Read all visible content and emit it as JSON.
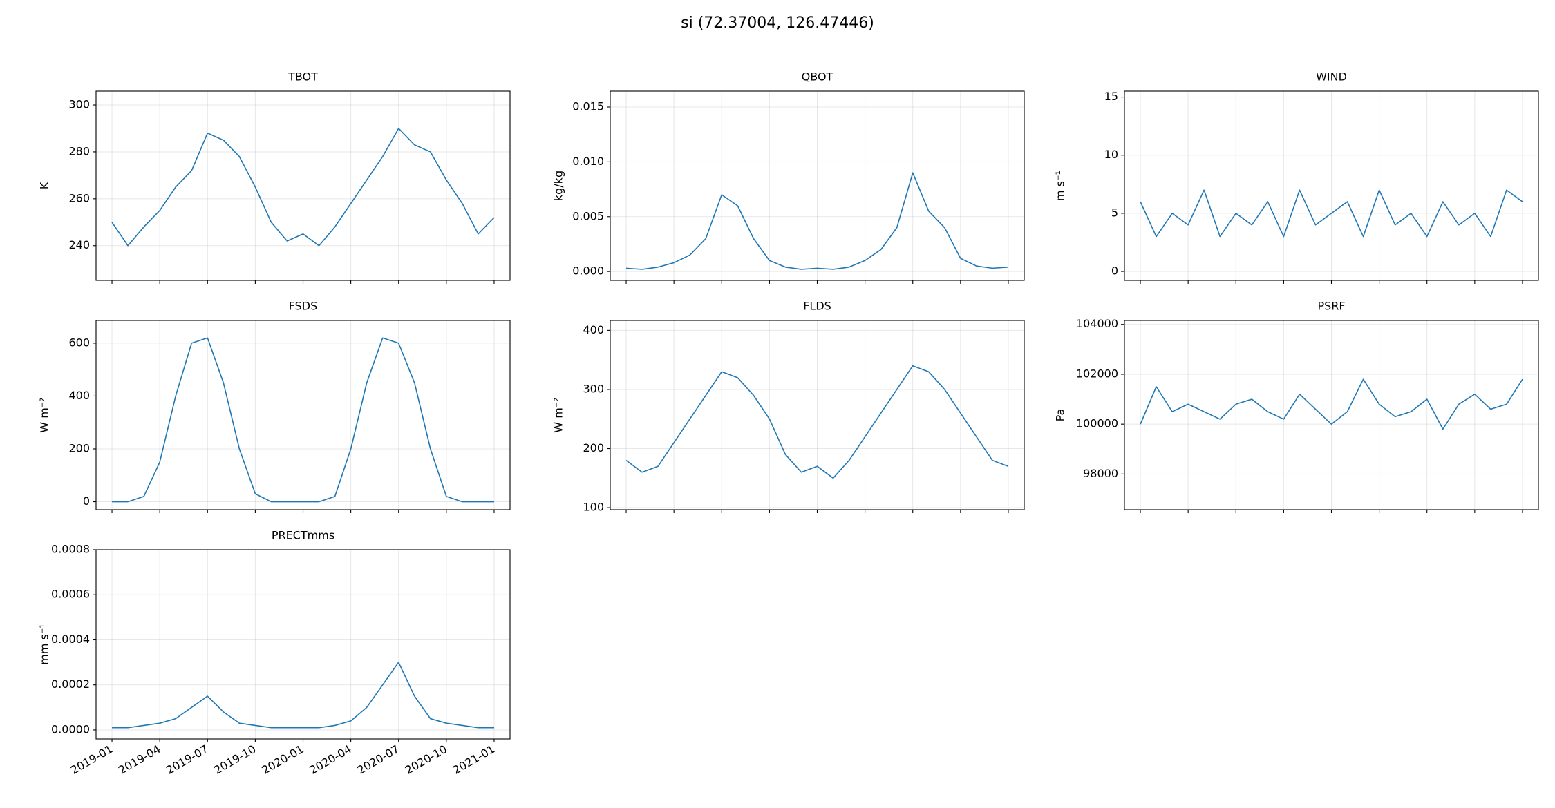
{
  "title": "si  (72.37004, 126.47446)",
  "chart_data": [
    {
      "type": "line",
      "title": "TBOT",
      "ylabel": "K",
      "color": "#1f77b4",
      "grid": true,
      "x": [
        "2019-01",
        "2019-02",
        "2019-03",
        "2019-04",
        "2019-05",
        "2019-06",
        "2019-07",
        "2019-08",
        "2019-09",
        "2019-10",
        "2019-11",
        "2019-12",
        "2020-01",
        "2020-02",
        "2020-03",
        "2020-04",
        "2020-05",
        "2020-06",
        "2020-07",
        "2020-08",
        "2020-09",
        "2020-10",
        "2020-11",
        "2020-12",
        "2021-01"
      ],
      "values": [
        250,
        240,
        248,
        255,
        265,
        272,
        288,
        285,
        278,
        265,
        250,
        242,
        245,
        240,
        248,
        258,
        268,
        278,
        290,
        283,
        280,
        268,
        258,
        245,
        252
      ],
      "xlim": [
        "2018-12",
        "2021-02"
      ],
      "ylim": [
        225.2,
        305.9
      ],
      "yticks": [
        240,
        260,
        280,
        300
      ]
    },
    {
      "type": "line",
      "title": "QBOT",
      "ylabel": "kg/kg",
      "color": "#1f77b4",
      "grid": true,
      "x": [
        "2019-01",
        "2019-02",
        "2019-03",
        "2019-04",
        "2019-05",
        "2019-06",
        "2019-07",
        "2019-08",
        "2019-09",
        "2019-10",
        "2019-11",
        "2019-12",
        "2020-01",
        "2020-02",
        "2020-03",
        "2020-04",
        "2020-05",
        "2020-06",
        "2020-07",
        "2020-08",
        "2020-09",
        "2020-10",
        "2020-11",
        "2020-12",
        "2021-01"
      ],
      "values": [
        0.0003,
        0.0002,
        0.0004,
        0.0008,
        0.0015,
        0.003,
        0.007,
        0.006,
        0.003,
        0.001,
        0.0004,
        0.0002,
        0.0003,
        0.0002,
        0.0004,
        0.001,
        0.002,
        0.004,
        0.009,
        0.0055,
        0.004,
        0.0012,
        0.0005,
        0.0003,
        0.0004
      ],
      "xlim": [
        "2018-12",
        "2021-02"
      ],
      "ylim": [
        -0.00081,
        0.01645
      ],
      "yticks": [
        {
          "value": 0,
          "label": "0.000"
        },
        {
          "value": 0.005,
          "label": "0.005"
        },
        {
          "value": 0.01,
          "label": "0.010"
        },
        {
          "value": 0.015,
          "label": "0.015"
        }
      ]
    },
    {
      "type": "line",
      "title": "WIND",
      "ylabel": "m s⁻¹",
      "color": "#1f77b4",
      "grid": true,
      "x": [
        "2019-01",
        "2019-02",
        "2019-03",
        "2019-04",
        "2019-05",
        "2019-06",
        "2019-07",
        "2019-08",
        "2019-09",
        "2019-10",
        "2019-11",
        "2019-12",
        "2020-01",
        "2020-02",
        "2020-03",
        "2020-04",
        "2020-05",
        "2020-06",
        "2020-07",
        "2020-08",
        "2020-09",
        "2020-10",
        "2020-11",
        "2020-12",
        "2021-01"
      ],
      "values": [
        6,
        3,
        5,
        4,
        7,
        3,
        5,
        4,
        6,
        3,
        7,
        4,
        5,
        6,
        3,
        7,
        4,
        5,
        3,
        6,
        4,
        5,
        3,
        7,
        6
      ],
      "xlim": [
        "2018-12",
        "2021-02"
      ],
      "ylim": [
        -0.77,
        15.51
      ],
      "yticks": [
        0,
        5,
        10,
        15
      ]
    },
    {
      "type": "line",
      "title": "FSDS",
      "ylabel": "W m⁻²",
      "color": "#1f77b4",
      "grid": true,
      "x": [
        "2019-01",
        "2019-02",
        "2019-03",
        "2019-04",
        "2019-05",
        "2019-06",
        "2019-07",
        "2019-08",
        "2019-09",
        "2019-10",
        "2019-11",
        "2019-12",
        "2020-01",
        "2020-02",
        "2020-03",
        "2020-04",
        "2020-05",
        "2020-06",
        "2020-07",
        "2020-08",
        "2020-09",
        "2020-10",
        "2020-11",
        "2020-12",
        "2021-01"
      ],
      "values": [
        0,
        0,
        20,
        150,
        400,
        600,
        620,
        450,
        200,
        30,
        0,
        0,
        0,
        0,
        20,
        200,
        450,
        620,
        600,
        450,
        200,
        20,
        0,
        0,
        0
      ],
      "xlim": [
        "2018-12",
        "2021-02"
      ],
      "ylim": [
        -30,
        686
      ],
      "yticks": [
        0,
        200,
        400,
        600
      ]
    },
    {
      "type": "line",
      "title": "FLDS",
      "ylabel": "W m⁻²",
      "color": "#1f77b4",
      "grid": true,
      "x": [
        "2019-01",
        "2019-02",
        "2019-03",
        "2019-04",
        "2019-05",
        "2019-06",
        "2019-07",
        "2019-08",
        "2019-09",
        "2019-10",
        "2019-11",
        "2019-12",
        "2020-01",
        "2020-02",
        "2020-03",
        "2020-04",
        "2020-05",
        "2020-06",
        "2020-07",
        "2020-08",
        "2020-09",
        "2020-10",
        "2020-11",
        "2020-12",
        "2021-01"
      ],
      "values": [
        180,
        160,
        170,
        210,
        250,
        290,
        330,
        320,
        290,
        250,
        190,
        160,
        170,
        150,
        180,
        220,
        260,
        300,
        340,
        330,
        300,
        260,
        220,
        180,
        170
      ],
      "xlim": [
        "2018-12",
        "2021-02"
      ],
      "ylim": [
        96.6,
        416.8
      ],
      "yticks": [
        100,
        200,
        300,
        400
      ]
    },
    {
      "type": "line",
      "title": "PSRF",
      "ylabel": "Pa",
      "color": "#1f77b4",
      "grid": true,
      "x": [
        "2019-01",
        "2019-02",
        "2019-03",
        "2019-04",
        "2019-05",
        "2019-06",
        "2019-07",
        "2019-08",
        "2019-09",
        "2019-10",
        "2019-11",
        "2019-12",
        "2020-01",
        "2020-02",
        "2020-03",
        "2020-04",
        "2020-05",
        "2020-06",
        "2020-07",
        "2020-08",
        "2020-09",
        "2020-10",
        "2020-11",
        "2020-12",
        "2021-01"
      ],
      "values": [
        100000,
        101500,
        100500,
        100800,
        100500,
        100200,
        100800,
        101000,
        100500,
        100200,
        101200,
        100600,
        100000,
        100500,
        101800,
        100800,
        100300,
        100500,
        101000,
        99800,
        100800,
        101200,
        100600,
        100800,
        101800
      ],
      "xlim": [
        "2018-12",
        "2021-02"
      ],
      "ylim": [
        96570,
        104159
      ],
      "yticks": [
        98000,
        100000,
        102000,
        104000
      ]
    },
    {
      "type": "line",
      "title": "PRECTmms",
      "ylabel": "mm s⁻¹",
      "color": "#1f77b4",
      "grid": true,
      "x": [
        "2019-01",
        "2019-02",
        "2019-03",
        "2019-04",
        "2019-05",
        "2019-06",
        "2019-07",
        "2019-08",
        "2019-09",
        "2019-10",
        "2019-11",
        "2019-12",
        "2020-01",
        "2020-02",
        "2020-03",
        "2020-04",
        "2020-05",
        "2020-06",
        "2020-07",
        "2020-08",
        "2020-09",
        "2020-10",
        "2020-11",
        "2020-12",
        "2021-01"
      ],
      "values": [
        1e-05,
        1e-05,
        2e-05,
        3e-05,
        5e-05,
        0.0001,
        0.00015,
        8e-05,
        3e-05,
        2e-05,
        1e-05,
        1e-05,
        1e-05,
        1e-05,
        2e-05,
        4e-05,
        0.0001,
        0.0002,
        0.0003,
        0.00015,
        5e-05,
        3e-05,
        2e-05,
        1e-05,
        1e-05
      ],
      "xlim": [
        "2018-12",
        "2021-02"
      ],
      "ylim": [
        -4e-05,
        0.0008
      ],
      "yticks": [
        {
          "value": 0,
          "label": "0.0000"
        },
        0.0002,
        0.0004,
        0.0006,
        0.0008
      ],
      "xticks": [
        "2019-01",
        "2019-04",
        "2019-07",
        "2019-10",
        "2020-01",
        "2020-04",
        "2020-07",
        "2020-10",
        "2021-01"
      ]
    }
  ]
}
